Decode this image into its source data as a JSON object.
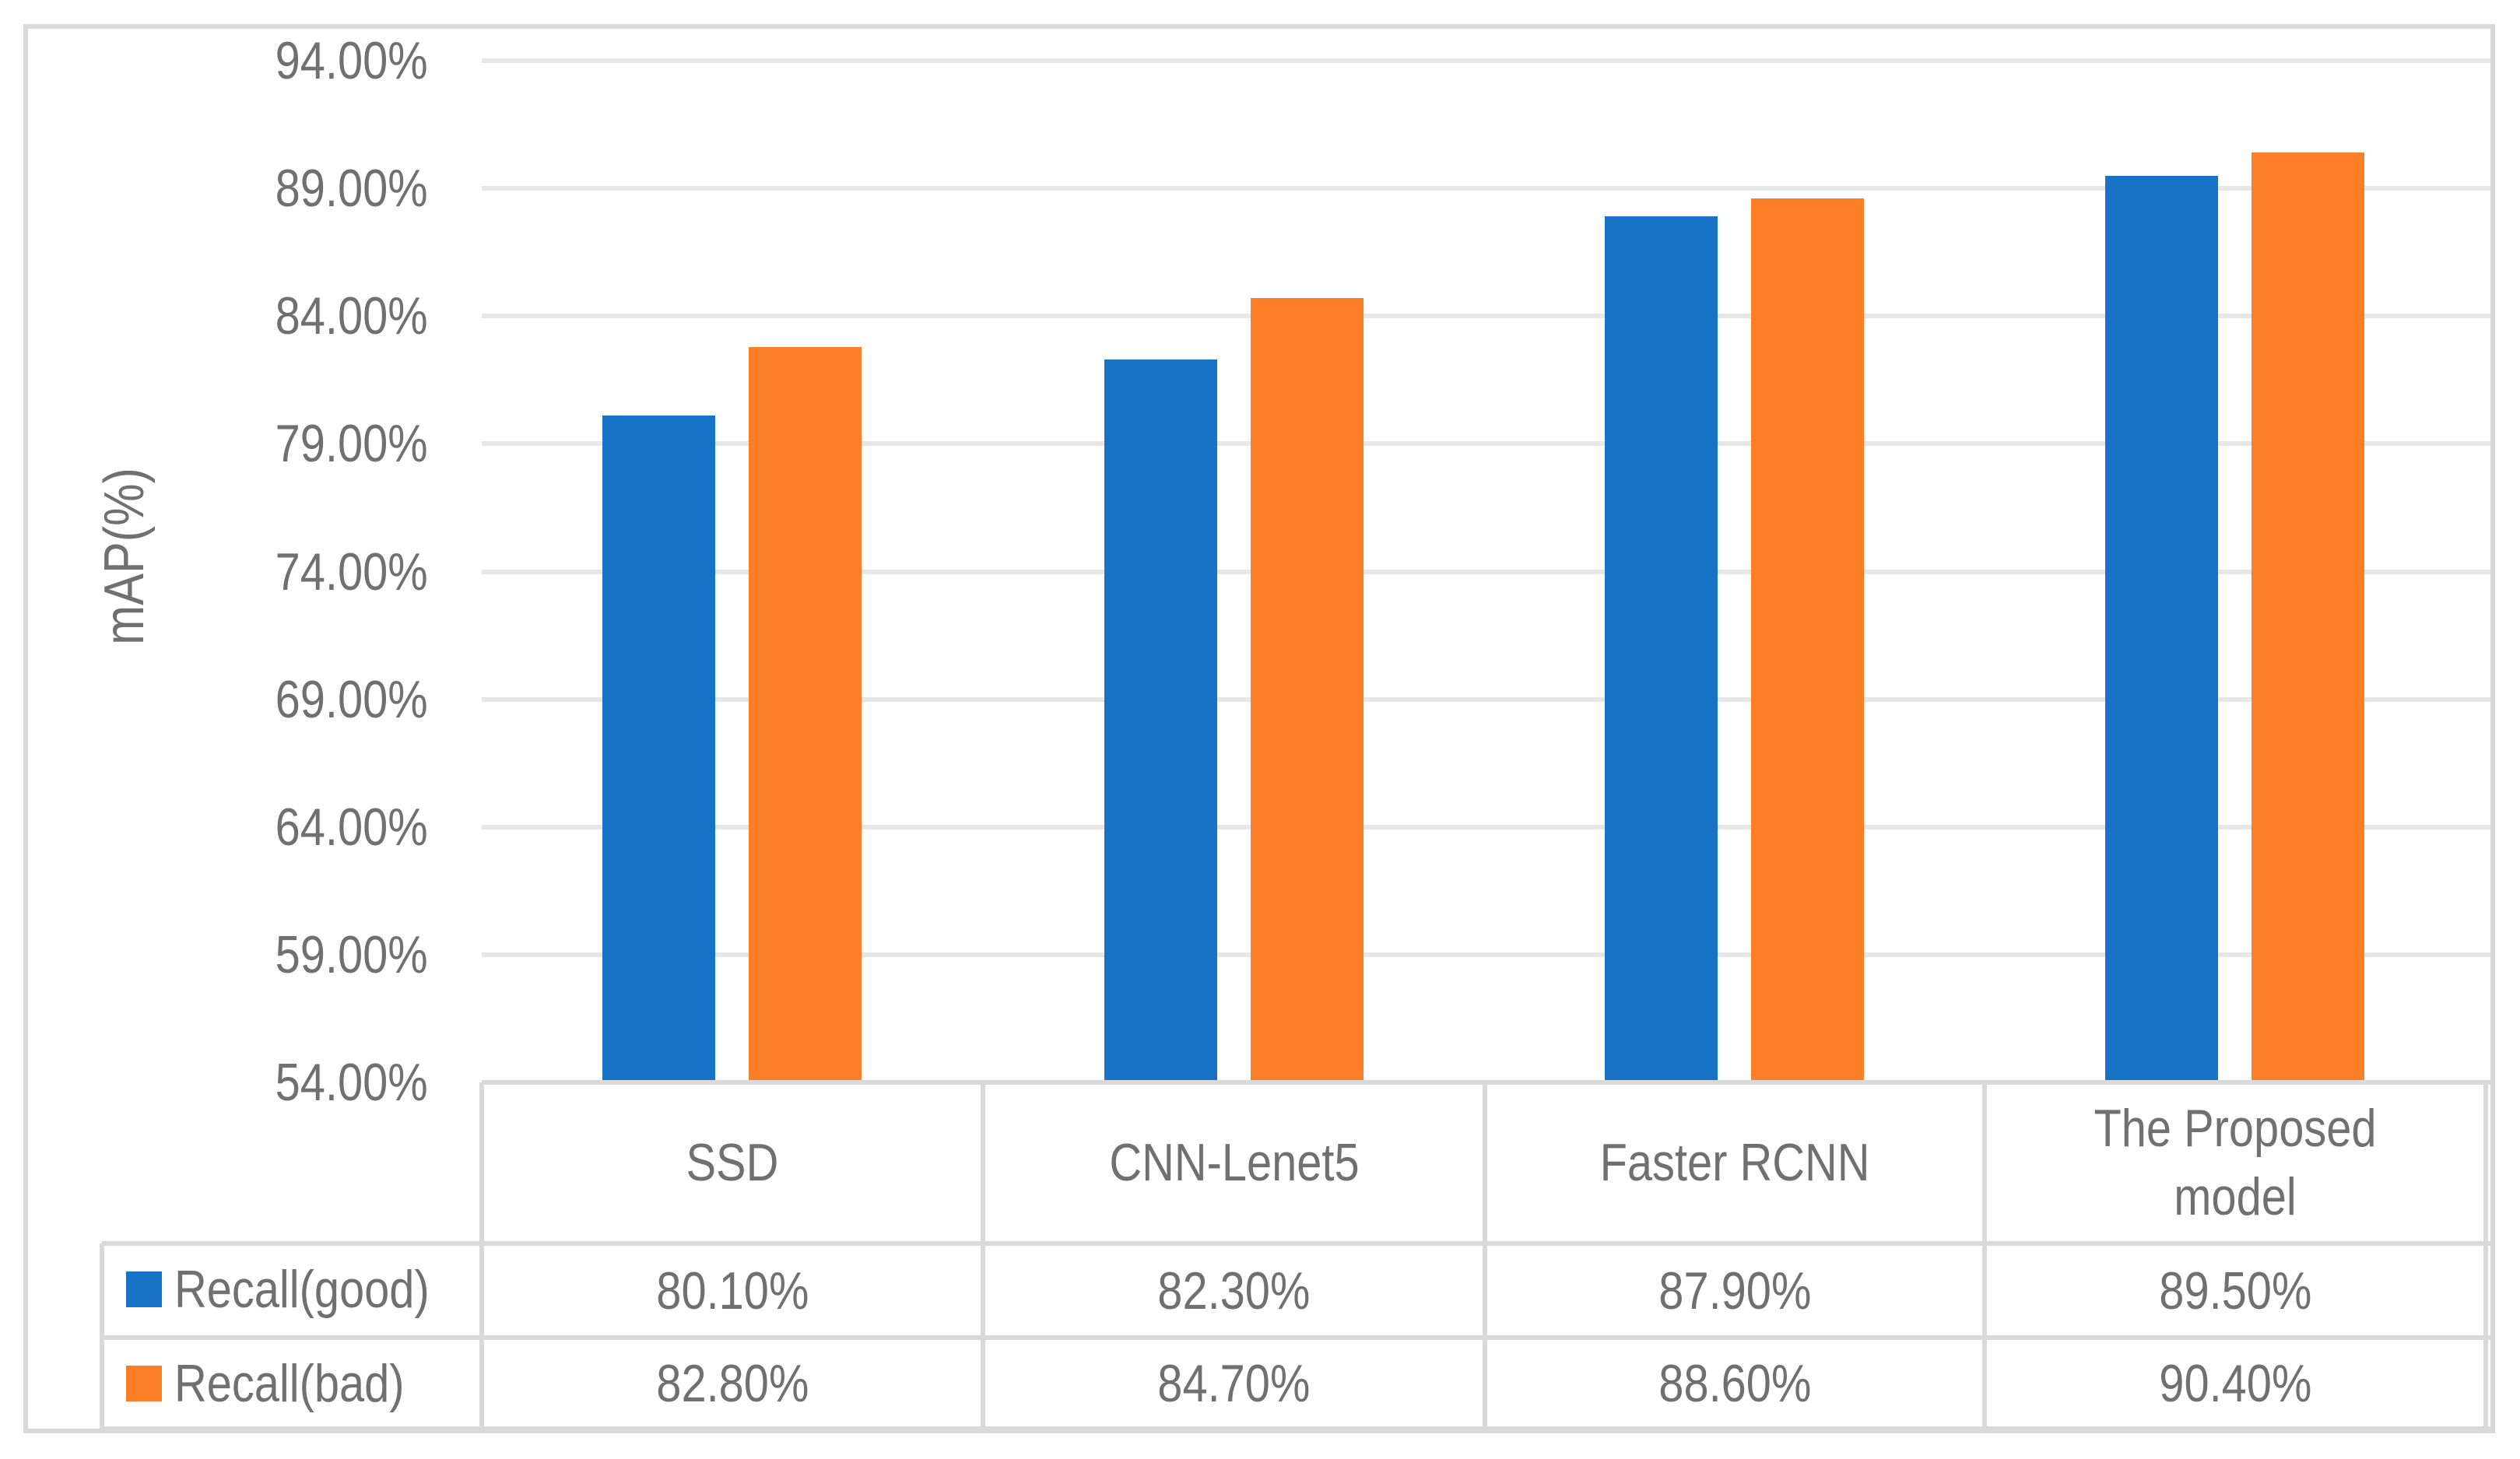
{
  "figure": {
    "background": "#FFFFFF",
    "border_color": "#D9D9D9",
    "gridline_color": "#E7E7E7",
    "text_color": "#707070"
  },
  "chart_data": {
    "type": "bar",
    "title": "",
    "xlabel": "",
    "ylabel": "mAP(%)",
    "categories": [
      "SSD",
      "CNN-Lenet5",
      "Faster RCNN",
      "The Proposed model"
    ],
    "series": [
      {
        "name": "Recall(good)",
        "color": "#1873C6",
        "values": [
          80.1,
          82.3,
          87.9,
          89.5
        ],
        "value_labels": [
          "80.10%",
          "82.30%",
          "87.90%",
          "89.50%"
        ]
      },
      {
        "name": "Recall(bad)",
        "color": "#FC7E26",
        "values": [
          82.8,
          84.7,
          88.6,
          90.4
        ],
        "value_labels": [
          "82.80%",
          "84.70%",
          "88.60%",
          "90.40%"
        ]
      }
    ],
    "ylim": [
      54,
      94
    ],
    "ytick_step": 5,
    "yticks": [
      {
        "value": 94,
        "label": "94.00%"
      },
      {
        "value": 89,
        "label": "89.00%"
      },
      {
        "value": 84,
        "label": "84.00%"
      },
      {
        "value": 79,
        "label": "79.00%"
      },
      {
        "value": 74,
        "label": "74.00%"
      },
      {
        "value": 69,
        "label": "69.00%"
      },
      {
        "value": 64,
        "label": "64.00%"
      },
      {
        "value": 59,
        "label": "59.00%"
      },
      {
        "value": 54,
        "label": "54.00%"
      }
    ],
    "grid": true,
    "legend_position": "data table rows below chart"
  }
}
